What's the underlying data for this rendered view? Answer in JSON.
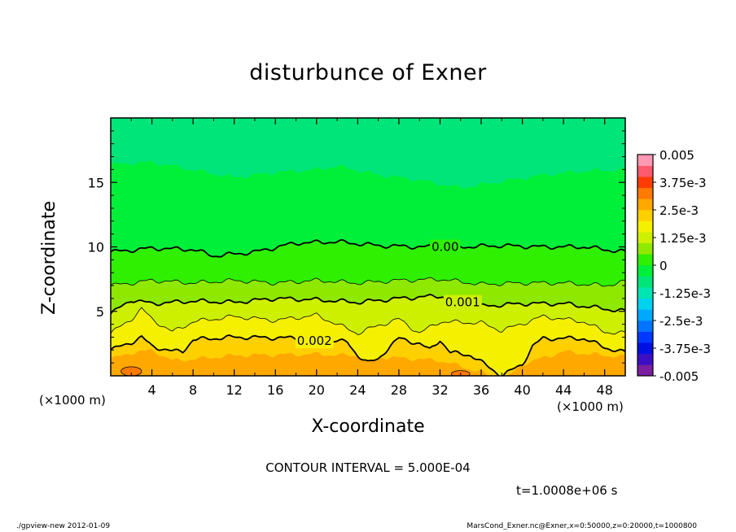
{
  "title": "disturbunce of Exner",
  "xlabel": "X-coordinate",
  "ylabel": "Z-coordinate",
  "x_unit_left": "(×1000 m)",
  "x_unit_right": "(×1000 m)",
  "contour_interval_text": "CONTOUR INTERVAL = 5.000E-04",
  "time_text": "t=1.0008e+06 s",
  "footer_left": "./gpview-new  2012-01-09",
  "footer_right": "MarsCond_Exner.nc@Exner,x=0:50000,z=0:20000,t=1000800",
  "colors": {
    "low_purple": "#7a1fa0",
    "high_pink": "#ff99b3"
  },
  "chart_data": {
    "type": "contour",
    "title": "disturbunce of Exner",
    "xlabel": "X-coordinate",
    "ylabel": "Z-coordinate",
    "xlim": [
      0,
      50
    ],
    "ylim": [
      0,
      20
    ],
    "xticks": [
      "4",
      "8",
      "12",
      "16",
      "20",
      "24",
      "28",
      "32",
      "36",
      "40",
      "44",
      "48"
    ],
    "yticks": [
      "5",
      "10",
      "15"
    ],
    "contour_labels": [
      "0.00",
      "0.001",
      "0.002"
    ],
    "colorbar": {
      "labels": [
        "0.005",
        "3.75e-3",
        "2.5e-3",
        "1.25e-3",
        "0",
        "-1.25e-3",
        "-2.5e-3",
        "-3.75e-3",
        "-0.005"
      ],
      "range": [
        -0.005,
        0.005
      ],
      "levels": 20
    }
  }
}
